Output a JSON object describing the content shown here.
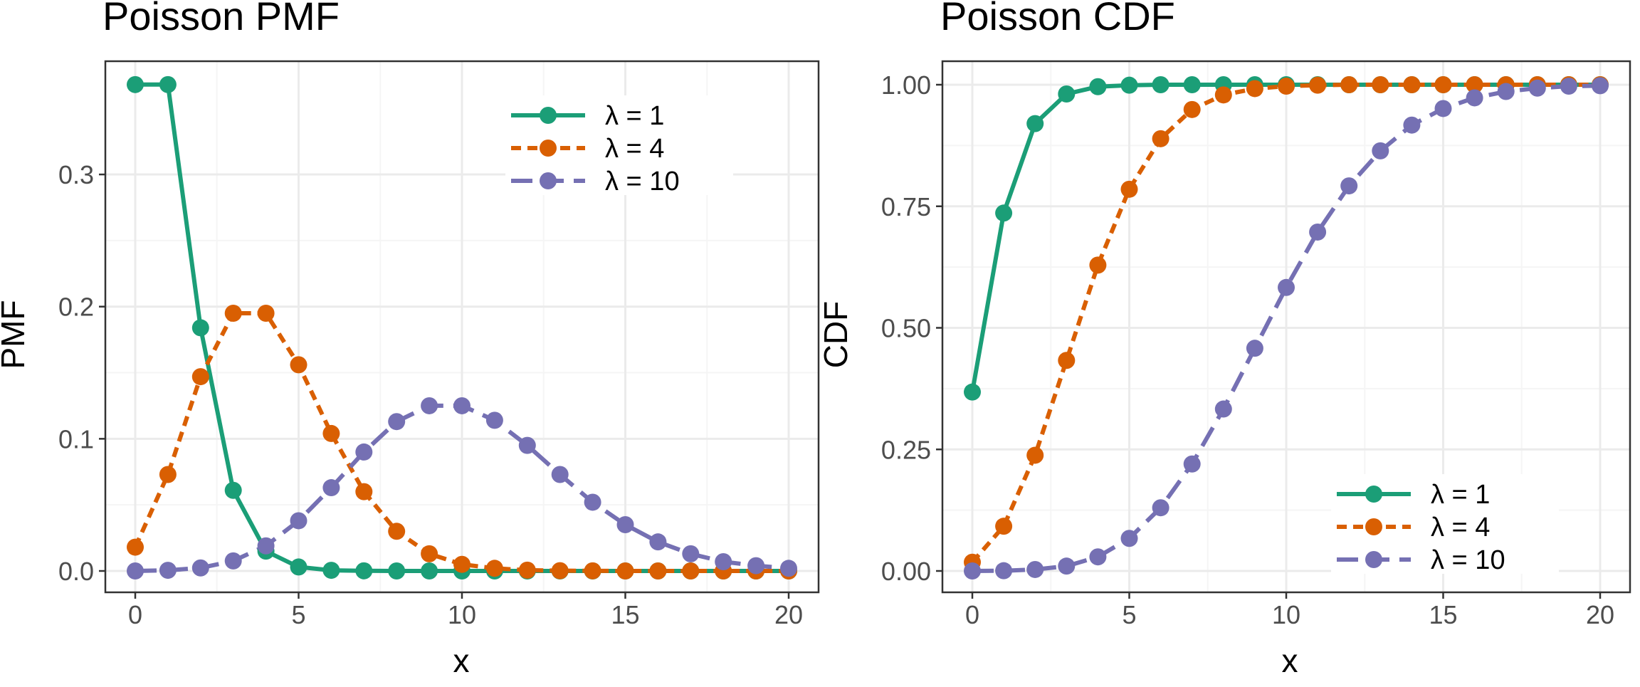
{
  "colors": {
    "lambda_1": "#1b9e77",
    "lambda_4": "#d95f02",
    "lambda_10": "#7570b3",
    "grid_major": "#ebebeb",
    "grid_minor": "#f5f5f5",
    "panel_border": "#333333",
    "tick_text": "#4d4d4d"
  },
  "chart_data": [
    {
      "id": "pmf",
      "type": "line",
      "title": "Poisson PMF",
      "xlabel": "x",
      "ylabel": "PMF",
      "xlim": [
        0,
        20
      ],
      "ylim": [
        0,
        0.3679
      ],
      "xticks": [
        0,
        5,
        10,
        15,
        20
      ],
      "xtick_labels": [
        "0",
        "5",
        "10",
        "15",
        "20"
      ],
      "yticks": [
        0,
        0.1,
        0.2,
        0.3
      ],
      "ytick_labels": [
        "0.0",
        "0.1",
        "0.2",
        "0.3"
      ],
      "grid": true,
      "legend_position": "top-right",
      "x": [
        0,
        1,
        2,
        3,
        4,
        5,
        6,
        7,
        8,
        9,
        10,
        11,
        12,
        13,
        14,
        15,
        16,
        17,
        18,
        19,
        20
      ],
      "series": [
        {
          "name": "λ = 1",
          "color": "#1b9e77",
          "dash": "solid",
          "values": [
            0.368,
            0.368,
            0.184,
            0.061,
            0.015,
            0.003,
            0.0005,
            0.0001,
            0,
            0,
            0,
            0,
            0,
            0,
            0,
            0,
            0,
            0,
            0,
            0,
            0
          ]
        },
        {
          "name": "λ = 4",
          "color": "#d95f02",
          "dash": "dashed",
          "values": [
            0.018,
            0.073,
            0.147,
            0.195,
            0.195,
            0.156,
            0.104,
            0.06,
            0.03,
            0.013,
            0.005,
            0.002,
            0.0006,
            0.0002,
            0.0001,
            0,
            0,
            0,
            0,
            0,
            0
          ]
        },
        {
          "name": "λ = 10",
          "color": "#7570b3",
          "dash": "longdash",
          "values": [
            0.0,
            0.0005,
            0.0023,
            0.0076,
            0.019,
            0.038,
            0.063,
            0.09,
            0.113,
            0.125,
            0.125,
            0.114,
            0.095,
            0.073,
            0.052,
            0.035,
            0.022,
            0.013,
            0.007,
            0.004,
            0.002
          ]
        }
      ]
    },
    {
      "id": "cdf",
      "type": "line",
      "title": "Poisson CDF",
      "xlabel": "x",
      "ylabel": "CDF",
      "xlim": [
        0,
        20
      ],
      "ylim": [
        0,
        1
      ],
      "xticks": [
        0,
        5,
        10,
        15,
        20
      ],
      "xtick_labels": [
        "0",
        "5",
        "10",
        "15",
        "20"
      ],
      "yticks": [
        0,
        0.25,
        0.5,
        0.75,
        1
      ],
      "ytick_labels": [
        "0.00",
        "0.25",
        "0.50",
        "0.75",
        "1.00"
      ],
      "grid": true,
      "legend_position": "bottom-right",
      "x": [
        0,
        1,
        2,
        3,
        4,
        5,
        6,
        7,
        8,
        9,
        10,
        11,
        12,
        13,
        14,
        15,
        16,
        17,
        18,
        19,
        20
      ],
      "series": [
        {
          "name": "λ = 1",
          "color": "#1b9e77",
          "dash": "solid",
          "values": [
            0.368,
            0.736,
            0.92,
            0.981,
            0.996,
            0.999,
            1.0,
            1.0,
            1.0,
            1.0,
            1.0,
            1.0,
            1.0,
            1.0,
            1.0,
            1.0,
            1.0,
            1.0,
            1.0,
            1.0,
            1.0
          ]
        },
        {
          "name": "λ = 4",
          "color": "#d95f02",
          "dash": "dashed",
          "values": [
            0.018,
            0.092,
            0.238,
            0.433,
            0.629,
            0.785,
            0.889,
            0.949,
            0.979,
            0.992,
            0.997,
            0.999,
            1.0,
            1.0,
            1.0,
            1.0,
            1.0,
            1.0,
            1.0,
            1.0,
            1.0
          ]
        },
        {
          "name": "λ = 10",
          "color": "#7570b3",
          "dash": "longdash",
          "values": [
            0.0,
            0.0005,
            0.003,
            0.01,
            0.029,
            0.067,
            0.13,
            0.22,
            0.333,
            0.458,
            0.583,
            0.697,
            0.792,
            0.864,
            0.917,
            0.951,
            0.973,
            0.986,
            0.993,
            0.997,
            0.998
          ]
        }
      ]
    }
  ]
}
